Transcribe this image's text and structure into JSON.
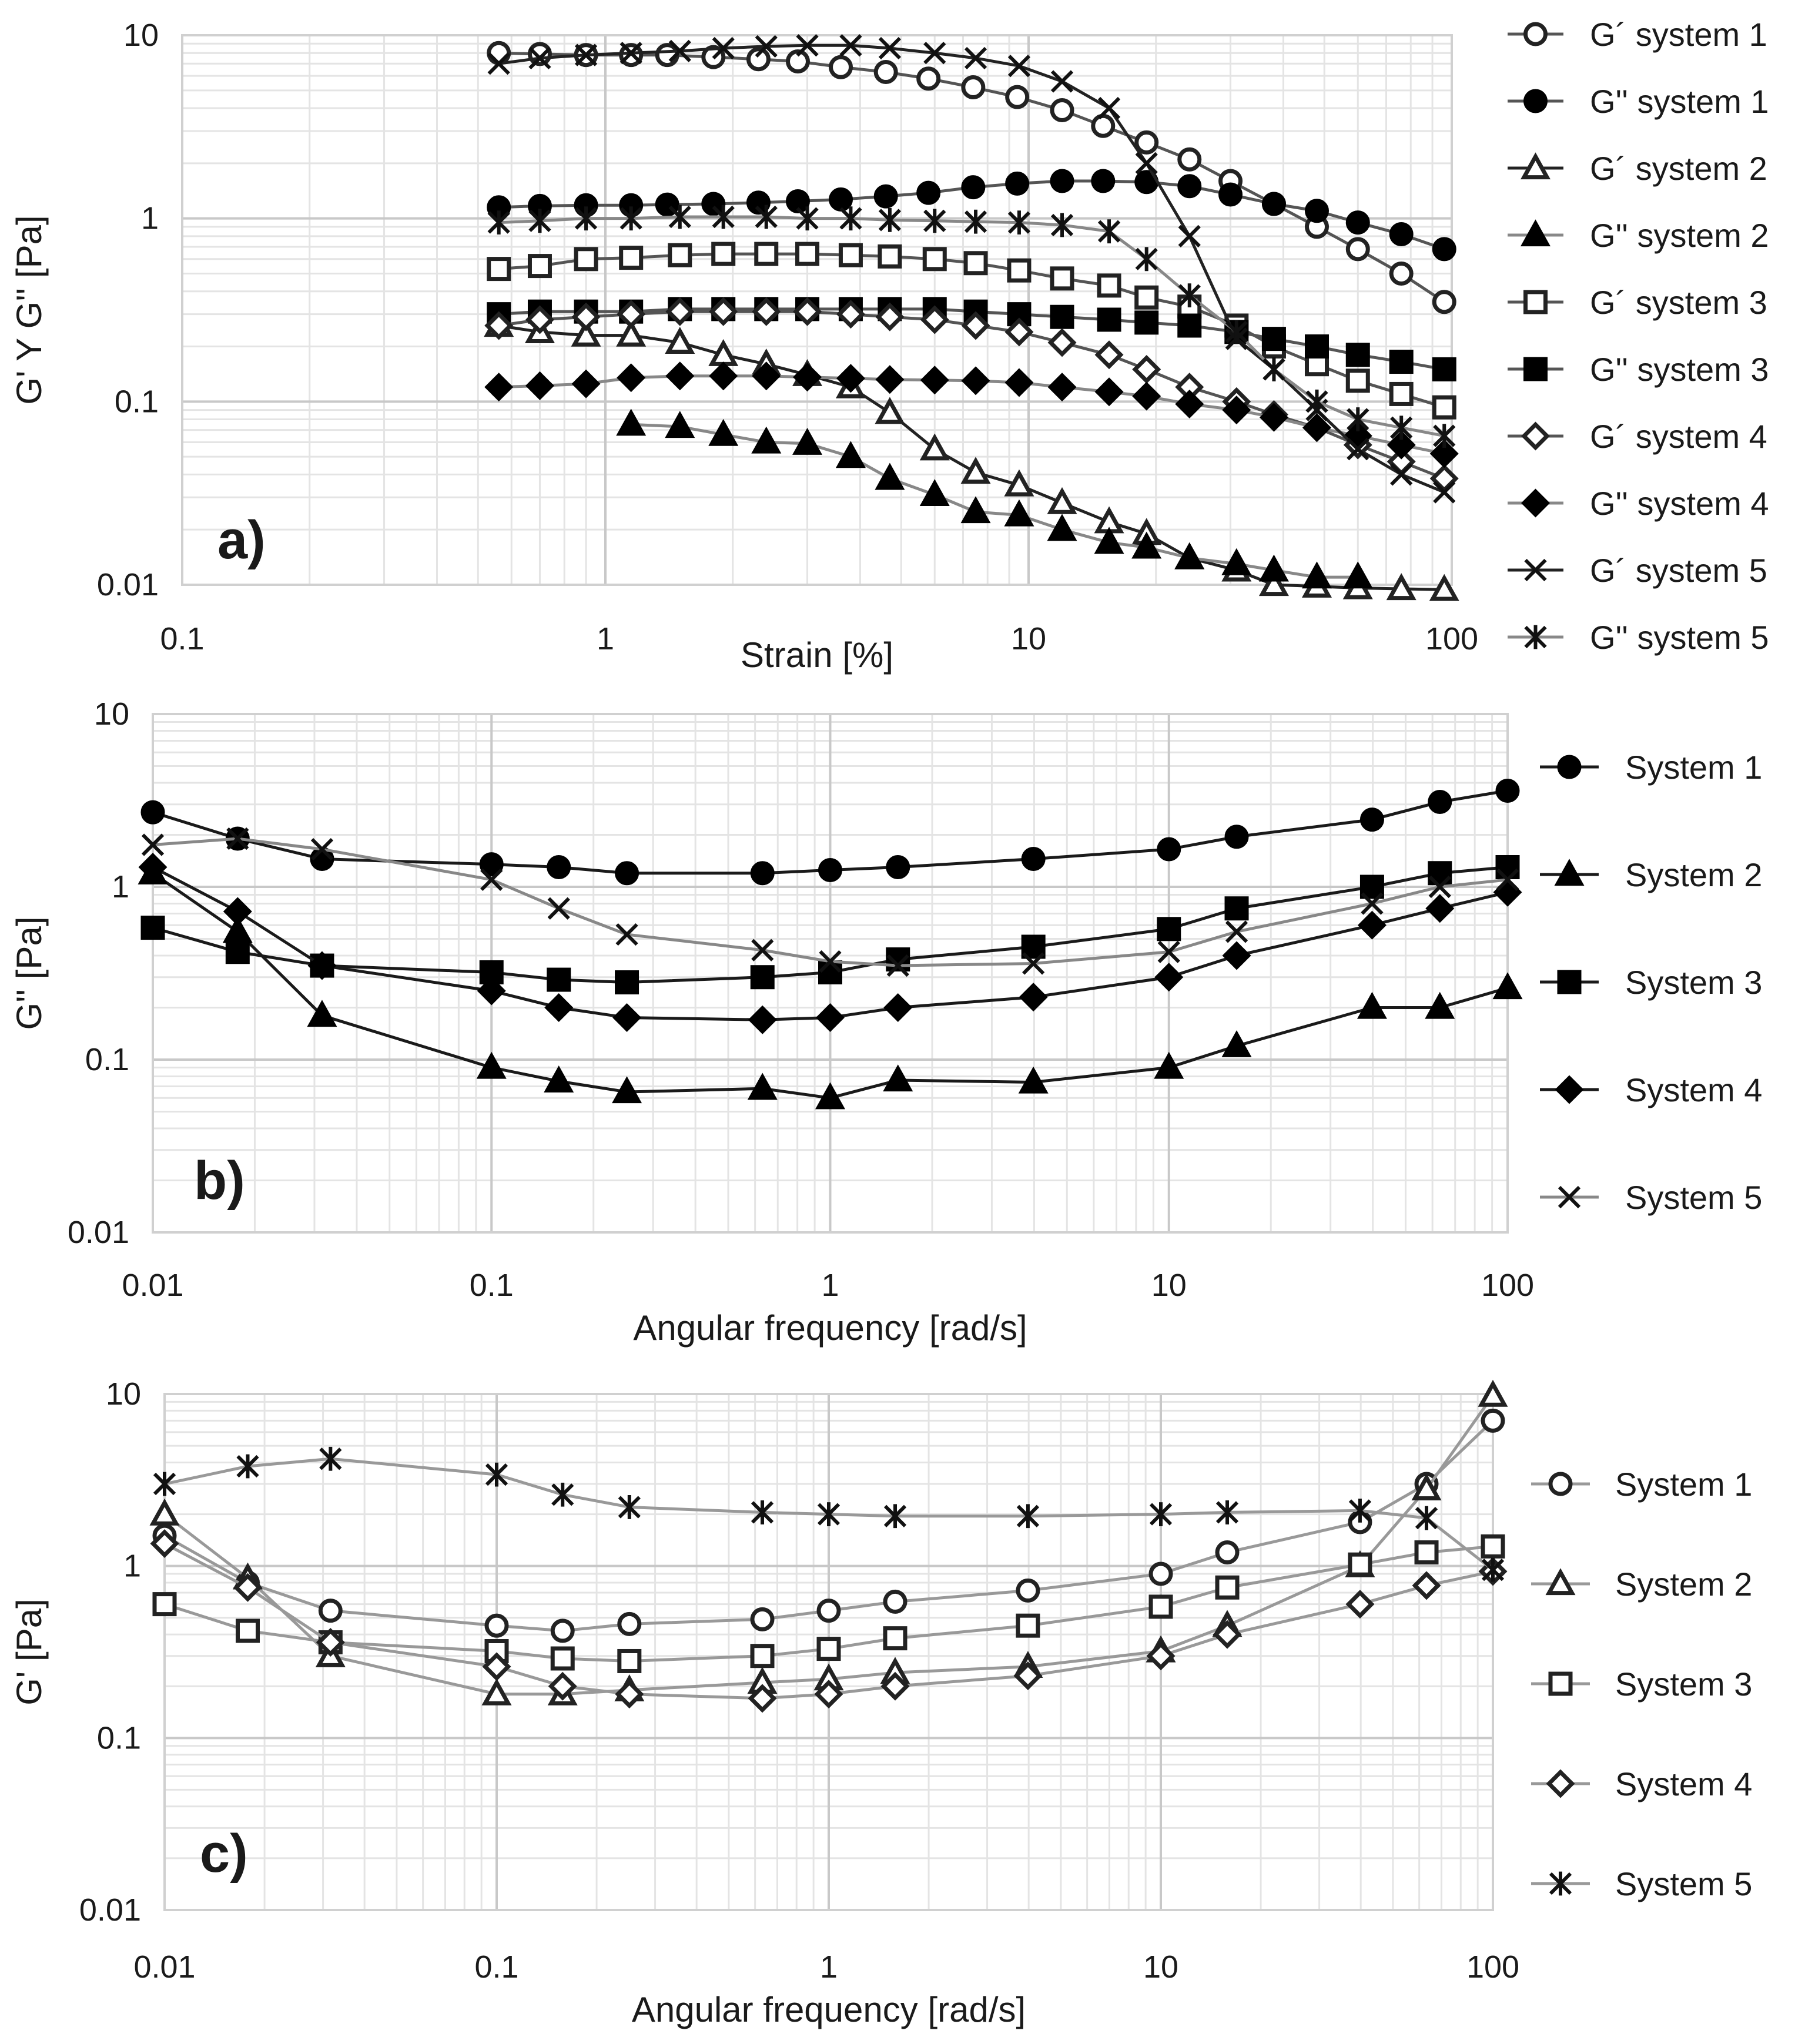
{
  "chart_data": [
    {
      "id": "a",
      "type": "line",
      "panel_label": "a)",
      "xlabel": "Strain  [%]",
      "ylabel": "G' Y G''  [Pa]",
      "xscale": "log",
      "yscale": "log",
      "xlim": [
        0.1,
        100
      ],
      "ylim": [
        0.01,
        10
      ],
      "x_ticks": [
        "0.1",
        "1",
        "10",
        "100"
      ],
      "y_ticks": [
        "0.01",
        "0.1",
        "1",
        "10"
      ],
      "legend_position": "right",
      "series": [
        {
          "name": "G´ system 1",
          "marker": "circle-open",
          "color": "#555555",
          "x": [
            0.56,
            0.7,
            0.9,
            1.15,
            1.4,
            1.8,
            2.3,
            2.85,
            3.6,
            4.6,
            5.8,
            7.4,
            9.4,
            12,
            15,
            19,
            24,
            30,
            38,
            48,
            60,
            76,
            96
          ],
          "y": [
            8.0,
            7.9,
            7.8,
            7.8,
            7.8,
            7.6,
            7.4,
            7.2,
            6.7,
            6.3,
            5.8,
            5.2,
            4.6,
            3.9,
            3.2,
            2.6,
            2.1,
            1.6,
            1.2,
            0.9,
            0.68,
            0.5,
            0.35
          ]
        },
        {
          "name": "G'' system 1",
          "marker": "circle-filled",
          "color": "#555555",
          "x": [
            0.56,
            0.7,
            0.9,
            1.15,
            1.4,
            1.8,
            2.3,
            2.85,
            3.6,
            4.6,
            5.8,
            7.4,
            9.4,
            12,
            15,
            19,
            24,
            30,
            38,
            48,
            60,
            76,
            96
          ],
          "y": [
            1.15,
            1.17,
            1.18,
            1.18,
            1.19,
            1.2,
            1.22,
            1.24,
            1.27,
            1.32,
            1.38,
            1.48,
            1.55,
            1.6,
            1.6,
            1.58,
            1.5,
            1.35,
            1.2,
            1.1,
            0.95,
            0.82,
            0.68
          ]
        },
        {
          "name": "G´ system 2",
          "marker": "triangle-open",
          "color": "#222222",
          "x": [
            0.56,
            0.7,
            0.9,
            1.15,
            1.5,
            1.9,
            2.4,
            3.0,
            3.8,
            4.7,
            6.0,
            7.5,
            9.5,
            12,
            15.5,
            19,
            24,
            31,
            38,
            48,
            60,
            76,
            96
          ],
          "y": [
            0.26,
            0.24,
            0.23,
            0.23,
            0.21,
            0.18,
            0.16,
            0.14,
            0.12,
            0.087,
            0.055,
            0.041,
            0.035,
            0.028,
            0.022,
            0.019,
            0.014,
            0.012,
            0.01,
            0.0098,
            0.0096,
            0.0095,
            0.0094
          ]
        },
        {
          "name": "G'' system 2",
          "marker": "triangle-filled",
          "color": "#888888",
          "x": [
            1.15,
            1.5,
            1.9,
            2.4,
            3.0,
            3.8,
            4.7,
            6.0,
            7.5,
            9.5,
            12,
            15.5,
            19,
            24,
            31,
            38,
            48,
            60
          ],
          "y": [
            0.075,
            0.073,
            0.066,
            0.06,
            0.059,
            0.05,
            0.038,
            0.031,
            0.025,
            0.024,
            0.02,
            0.017,
            0.016,
            0.014,
            0.013,
            0.012,
            0.011,
            0.011
          ]
        },
        {
          "name": "G´ system 3",
          "marker": "square-open",
          "color": "#555555",
          "x": [
            0.56,
            0.7,
            0.9,
            1.15,
            1.5,
            1.9,
            2.4,
            3.0,
            3.8,
            4.7,
            6.0,
            7.5,
            9.5,
            12,
            15.5,
            19,
            24,
            31,
            38,
            48,
            60,
            76,
            96
          ],
          "y": [
            0.53,
            0.55,
            0.6,
            0.61,
            0.63,
            0.64,
            0.64,
            0.64,
            0.63,
            0.62,
            0.6,
            0.57,
            0.52,
            0.47,
            0.43,
            0.37,
            0.33,
            0.26,
            0.2,
            0.16,
            0.13,
            0.11,
            0.093
          ]
        },
        {
          "name": "G'' system 3",
          "marker": "square-filled",
          "color": "#555555",
          "x": [
            0.56,
            0.7,
            0.9,
            1.15,
            1.5,
            1.9,
            2.4,
            3.0,
            3.8,
            4.7,
            6.0,
            7.5,
            9.5,
            12,
            15.5,
            19,
            24,
            31,
            38,
            48,
            60,
            76,
            96
          ],
          "y": [
            0.3,
            0.31,
            0.31,
            0.31,
            0.32,
            0.32,
            0.32,
            0.32,
            0.32,
            0.32,
            0.32,
            0.31,
            0.3,
            0.29,
            0.28,
            0.27,
            0.26,
            0.24,
            0.22,
            0.2,
            0.18,
            0.165,
            0.15
          ]
        },
        {
          "name": "G´ system 4",
          "marker": "diamond-open",
          "color": "#555555",
          "x": [
            0.56,
            0.7,
            0.9,
            1.15,
            1.5,
            1.9,
            2.4,
            3.0,
            3.8,
            4.7,
            6.0,
            7.5,
            9.5,
            12,
            15.5,
            19,
            24,
            31,
            38,
            48,
            60,
            76,
            96
          ],
          "y": [
            0.26,
            0.28,
            0.29,
            0.3,
            0.31,
            0.31,
            0.31,
            0.31,
            0.3,
            0.29,
            0.28,
            0.26,
            0.24,
            0.21,
            0.18,
            0.15,
            0.12,
            0.1,
            0.085,
            0.072,
            0.058,
            0.047,
            0.038
          ]
        },
        {
          "name": "G'' system 4",
          "marker": "diamond-filled",
          "color": "#888888",
          "x": [
            0.56,
            0.7,
            0.9,
            1.15,
            1.5,
            1.9,
            2.4,
            3.0,
            3.8,
            4.7,
            6.0,
            7.5,
            9.5,
            12,
            15.5,
            19,
            24,
            31,
            38,
            48,
            60,
            76,
            96
          ],
          "y": [
            0.12,
            0.122,
            0.125,
            0.135,
            0.138,
            0.138,
            0.138,
            0.136,
            0.134,
            0.132,
            0.131,
            0.13,
            0.127,
            0.12,
            0.113,
            0.107,
            0.097,
            0.09,
            0.082,
            0.072,
            0.065,
            0.058,
            0.052
          ]
        },
        {
          "name": "G´ system 5",
          "marker": "x",
          "color": "#222222",
          "x": [
            0.56,
            0.7,
            0.9,
            1.15,
            1.5,
            1.9,
            2.4,
            3.0,
            3.8,
            4.7,
            6.0,
            7.5,
            9.5,
            12,
            15.5,
            19,
            24,
            31,
            38,
            48,
            60,
            76,
            96
          ],
          "y": [
            7.0,
            7.5,
            7.8,
            8.0,
            8.2,
            8.5,
            8.7,
            8.8,
            8.8,
            8.5,
            8.0,
            7.5,
            6.8,
            5.6,
            4.0,
            2.0,
            0.8,
            0.22,
            0.15,
            0.09,
            0.055,
            0.04,
            0.032
          ]
        },
        {
          "name": "G'' system 5",
          "marker": "asterisk",
          "color": "#888888",
          "x": [
            0.56,
            0.7,
            0.9,
            1.15,
            1.5,
            1.9,
            2.4,
            3.0,
            3.8,
            4.7,
            6.0,
            7.5,
            9.5,
            12,
            15.5,
            19,
            24,
            31,
            38,
            48,
            60,
            76,
            96
          ],
          "y": [
            0.95,
            0.97,
            1.0,
            1.0,
            1.02,
            1.02,
            1.02,
            1.0,
            1.0,
            0.98,
            0.97,
            0.96,
            0.95,
            0.92,
            0.85,
            0.6,
            0.38,
            0.24,
            0.15,
            0.1,
            0.08,
            0.072,
            0.065
          ]
        }
      ]
    },
    {
      "id": "b",
      "type": "line",
      "panel_label": "b)",
      "xlabel": "Angular frequency [rad/s]",
      "ylabel": "G'' [Pa]",
      "xscale": "log",
      "yscale": "log",
      "xlim": [
        0.01,
        100
      ],
      "ylim": [
        0.01,
        10
      ],
      "x_ticks": [
        "0.01",
        "0.1",
        "1",
        "10",
        "100"
      ],
      "y_ticks": [
        "0.01",
        "0.1",
        "1",
        "10"
      ],
      "legend_position": "right",
      "series": [
        {
          "name": "System 1",
          "marker": "circle-filled",
          "color": "#1a1a1a",
          "x": [
            0.01,
            0.0178,
            0.0316,
            0.1,
            0.158,
            0.251,
            0.631,
            1,
            1.585,
            3.98,
            10,
            15.85,
            39.8,
            63.1,
            100
          ],
          "y": [
            2.7,
            1.9,
            1.45,
            1.35,
            1.3,
            1.2,
            1.2,
            1.25,
            1.3,
            1.45,
            1.65,
            1.95,
            2.45,
            3.1,
            3.6
          ]
        },
        {
          "name": "System 2",
          "marker": "triangle-filled",
          "color": "#1a1a1a",
          "x": [
            0.01,
            0.0178,
            0.0316,
            0.1,
            0.158,
            0.251,
            0.631,
            1,
            1.585,
            3.98,
            10,
            15.85,
            39.8,
            63.1,
            100
          ],
          "y": [
            1.2,
            0.55,
            0.18,
            0.09,
            0.075,
            0.065,
            0.068,
            0.06,
            0.076,
            0.074,
            0.09,
            0.12,
            0.2,
            0.2,
            0.26
          ]
        },
        {
          "name": "System 3",
          "marker": "square-filled",
          "color": "#1a1a1a",
          "x": [
            0.01,
            0.0178,
            0.0316,
            0.1,
            0.158,
            0.251,
            0.631,
            1,
            1.585,
            3.98,
            10,
            15.85,
            39.8,
            63.1,
            100
          ],
          "y": [
            0.58,
            0.42,
            0.35,
            0.32,
            0.29,
            0.28,
            0.3,
            0.32,
            0.38,
            0.45,
            0.57,
            0.75,
            1.0,
            1.2,
            1.3
          ]
        },
        {
          "name": "System 4",
          "marker": "diamond-filled",
          "color": "#1a1a1a",
          "x": [
            0.01,
            0.0178,
            0.0316,
            0.1,
            0.158,
            0.251,
            0.631,
            1,
            1.585,
            3.98,
            10,
            15.85,
            39.8,
            63.1,
            100
          ],
          "y": [
            1.3,
            0.72,
            0.35,
            0.25,
            0.2,
            0.175,
            0.17,
            0.175,
            0.2,
            0.23,
            0.3,
            0.4,
            0.6,
            0.75,
            0.93
          ]
        },
        {
          "name": "System 5",
          "marker": "x",
          "color": "#888888",
          "x": [
            0.01,
            0.0178,
            0.0316,
            0.1,
            0.158,
            0.251,
            0.631,
            1,
            1.585,
            3.98,
            10,
            15.85,
            39.8,
            63.1,
            100
          ],
          "y": [
            1.75,
            1.9,
            1.65,
            1.1,
            0.75,
            0.53,
            0.43,
            0.37,
            0.35,
            0.36,
            0.42,
            0.55,
            0.8,
            1.0,
            1.1
          ]
        }
      ]
    },
    {
      "id": "c",
      "type": "line",
      "panel_label": "c)",
      "xlabel": "Angular frequency [rad/s]",
      "ylabel": "G' [Pa]",
      "xscale": "log",
      "yscale": "log",
      "xlim": [
        0.01,
        100
      ],
      "ylim": [
        0.01,
        10
      ],
      "x_ticks": [
        "0.01",
        "0.1",
        "1",
        "10",
        "100"
      ],
      "y_ticks": [
        "0.01",
        "0.1",
        "1",
        "10"
      ],
      "legend_position": "right",
      "series": [
        {
          "name": "System 1",
          "marker": "circle-open",
          "color": "#999999",
          "x": [
            0.01,
            0.0178,
            0.0316,
            0.1,
            0.158,
            0.251,
            0.631,
            1,
            1.585,
            3.98,
            10,
            15.85,
            39.8,
            63.1,
            100
          ],
          "y": [
            1.5,
            0.8,
            0.55,
            0.45,
            0.42,
            0.46,
            0.49,
            0.55,
            0.62,
            0.72,
            0.9,
            1.2,
            1.8,
            3.0,
            7.0
          ]
        },
        {
          "name": "System 2",
          "marker": "triangle-open",
          "color": "#999999",
          "x": [
            0.01,
            0.0178,
            0.0316,
            0.1,
            0.158,
            0.251,
            0.631,
            1,
            1.585,
            3.98,
            10,
            15.85,
            39.8,
            63.1,
            100
          ],
          "y": [
            2.0,
            0.85,
            0.3,
            0.18,
            0.18,
            0.19,
            0.21,
            0.22,
            0.24,
            0.26,
            0.32,
            0.45,
            1.0,
            2.8,
            9.8
          ]
        },
        {
          "name": "System 3",
          "marker": "square-open",
          "color": "#999999",
          "x": [
            0.01,
            0.0178,
            0.0316,
            0.1,
            0.158,
            0.251,
            0.631,
            1,
            1.585,
            3.98,
            10,
            15.85,
            39.8,
            63.1,
            100
          ],
          "y": [
            0.6,
            0.42,
            0.36,
            0.32,
            0.29,
            0.28,
            0.3,
            0.33,
            0.38,
            0.45,
            0.58,
            0.75,
            1.02,
            1.2,
            1.3
          ]
        },
        {
          "name": "System 4",
          "marker": "diamond-open",
          "color": "#999999",
          "x": [
            0.01,
            0.0178,
            0.0316,
            0.1,
            0.158,
            0.251,
            0.631,
            1,
            1.585,
            3.98,
            10,
            15.85,
            39.8,
            63.1,
            100
          ],
          "y": [
            1.35,
            0.75,
            0.36,
            0.26,
            0.2,
            0.18,
            0.17,
            0.18,
            0.2,
            0.23,
            0.3,
            0.4,
            0.6,
            0.77,
            0.93
          ]
        },
        {
          "name": "System 5",
          "marker": "asterisk",
          "color": "#999999",
          "x": [
            0.01,
            0.0178,
            0.0316,
            0.1,
            0.158,
            0.251,
            0.631,
            1,
            1.585,
            3.98,
            10,
            15.85,
            39.8,
            63.1,
            100
          ],
          "y": [
            3.0,
            3.8,
            4.2,
            3.4,
            2.6,
            2.2,
            2.05,
            2.0,
            1.95,
            1.95,
            2.0,
            2.05,
            2.1,
            1.9,
            0.95
          ]
        }
      ]
    }
  ]
}
